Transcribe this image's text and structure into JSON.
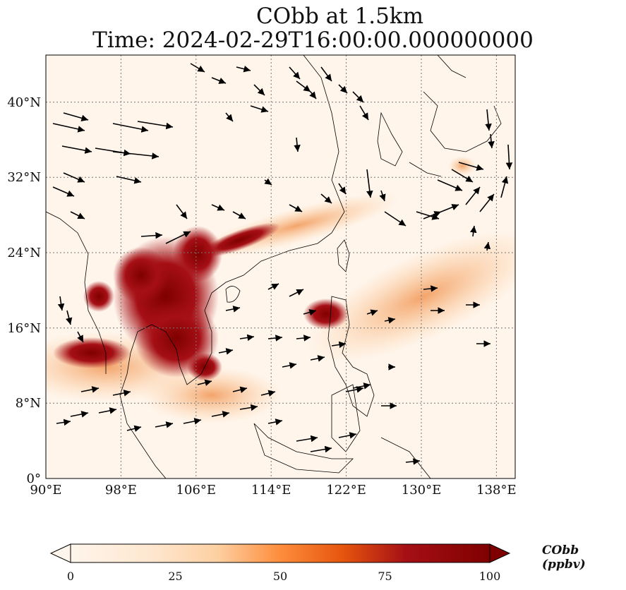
{
  "title_line1": "CObb at 1.5km",
  "title_line2": "Time: 2024-02-29T16:00:00.000000000",
  "lon_ticks": [
    "90°E",
    "98°E",
    "106°E",
    "114°E",
    "122°E",
    "130°E",
    "138°E"
  ],
  "lat_ticks": [
    "0°",
    "8°N",
    "16°N",
    "24°N",
    "32°N",
    "40°N"
  ],
  "colorbar": {
    "label": "CObb (ppbv)",
    "ticks": [
      "0",
      "25",
      "50",
      "75",
      "100"
    ],
    "colors": [
      "#fff5eb",
      "#fdd0a2",
      "#fd8d3c",
      "#d94801",
      "#a50f15",
      "#7f0000"
    ]
  },
  "extent": {
    "lon": [
      90,
      140
    ],
    "lat": [
      0,
      45
    ]
  }
}
